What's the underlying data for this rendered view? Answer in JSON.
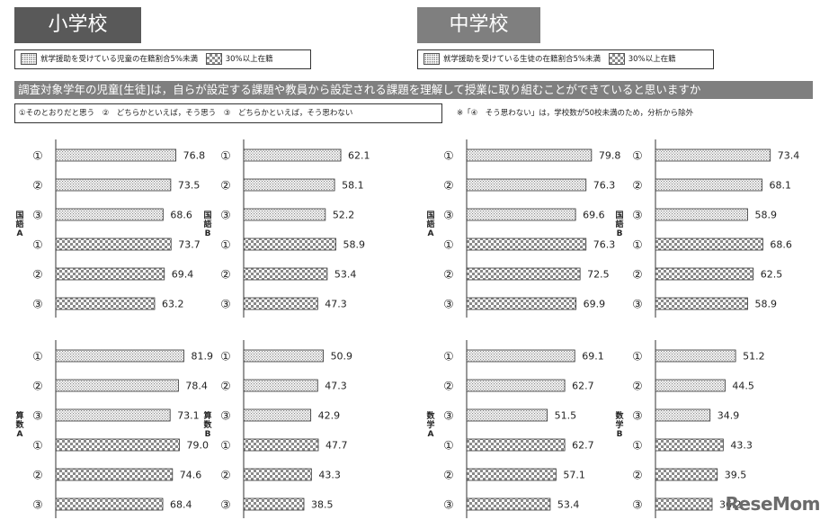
{
  "header": {
    "elementary": {
      "title": "小学校",
      "legend_low": "就学援助を受けている児童の在籍割合5%未満",
      "legend_high": "30%以上在籍"
    },
    "junior": {
      "title": "中学校",
      "legend_low": "就学援助を受けている生徒の在籍割合5%未満",
      "legend_high": "30%以上在籍"
    },
    "question": "調査対象学年の児童[生徒]は，自らが設定する課題や教員から設定される課題を理解して授業に取り組むことができていると思いますか",
    "options": "①そのとおりだと思う　②　どちらかといえば，そう思う　③　どちらかといえば，そう思わない",
    "note": "※「④　そう思わない」は，学校数が50校未満のため，分析から除外"
  },
  "colors": {
    "title_bg": "#595959",
    "question_bg": "#7f7f7f",
    "pattern": "#8a8a8a",
    "axis": "#333333"
  },
  "logo": "ReseMom",
  "chart_data": [
    {
      "type": "bar",
      "orientation": "horizontal",
      "subject": "国語A",
      "school": "小学校",
      "categories": [
        "①",
        "②",
        "③",
        "①",
        "②",
        "③"
      ],
      "groups": [
        "5%未満",
        "5%未満",
        "5%未満",
        "30%以上",
        "30%以上",
        "30%以上"
      ],
      "values": [
        76.8,
        73.5,
        68.6,
        73.7,
        69.4,
        63.2
      ],
      "xlim": [
        0,
        100
      ]
    },
    {
      "type": "bar",
      "orientation": "horizontal",
      "subject": "国語B",
      "school": "小学校",
      "categories": [
        "①",
        "②",
        "③",
        "①",
        "②",
        "③"
      ],
      "groups": [
        "5%未満",
        "5%未満",
        "5%未満",
        "30%以上",
        "30%以上",
        "30%以上"
      ],
      "values": [
        62.1,
        58.1,
        52.2,
        58.9,
        53.4,
        47.3
      ],
      "xlim": [
        0,
        100
      ]
    },
    {
      "type": "bar",
      "orientation": "horizontal",
      "subject": "算数A",
      "school": "小学校",
      "categories": [
        "①",
        "②",
        "③",
        "①",
        "②",
        "③"
      ],
      "groups": [
        "5%未満",
        "5%未満",
        "5%未満",
        "30%以上",
        "30%以上",
        "30%以上"
      ],
      "values": [
        81.9,
        78.4,
        73.1,
        79.0,
        74.6,
        68.4
      ],
      "xlim": [
        0,
        100
      ]
    },
    {
      "type": "bar",
      "orientation": "horizontal",
      "subject": "算数B",
      "school": "小学校",
      "categories": [
        "①",
        "②",
        "③",
        "①",
        "②",
        "③"
      ],
      "groups": [
        "5%未満",
        "5%未満",
        "5%未満",
        "30%以上",
        "30%以上",
        "30%以上"
      ],
      "values": [
        50.9,
        47.3,
        42.9,
        47.7,
        43.3,
        38.5
      ],
      "xlim": [
        0,
        100
      ]
    },
    {
      "type": "bar",
      "orientation": "horizontal",
      "subject": "国語A",
      "school": "中学校",
      "categories": [
        "①",
        "②",
        "③",
        "①",
        "②",
        "③"
      ],
      "groups": [
        "5%未満",
        "5%未満",
        "5%未満",
        "30%以上",
        "30%以上",
        "30%以上"
      ],
      "values": [
        79.8,
        76.3,
        69.6,
        76.3,
        72.5,
        69.9
      ],
      "xlim": [
        0,
        100
      ]
    },
    {
      "type": "bar",
      "orientation": "horizontal",
      "subject": "国語B",
      "school": "中学校",
      "categories": [
        "①",
        "②",
        "③",
        "①",
        "②",
        "③"
      ],
      "groups": [
        "5%未満",
        "5%未満",
        "5%未満",
        "30%以上",
        "30%以上",
        "30%以上"
      ],
      "values": [
        73.4,
        68.1,
        58.9,
        68.6,
        62.5,
        58.9
      ],
      "xlim": [
        0,
        100
      ]
    },
    {
      "type": "bar",
      "orientation": "horizontal",
      "subject": "数学A",
      "school": "中学校",
      "categories": [
        "①",
        "②",
        "③",
        "①",
        "②",
        "③"
      ],
      "groups": [
        "5%未満",
        "5%未満",
        "5%未満",
        "30%以上",
        "30%以上",
        "30%以上"
      ],
      "values": [
        69.1,
        62.7,
        51.5,
        62.7,
        57.1,
        53.4
      ],
      "xlim": [
        0,
        100
      ]
    },
    {
      "type": "bar",
      "orientation": "horizontal",
      "subject": "数学B",
      "school": "中学校",
      "categories": [
        "①",
        "②",
        "③",
        "①",
        "②",
        "③"
      ],
      "groups": [
        "5%未満",
        "5%未満",
        "5%未満",
        "30%以上",
        "30%以上",
        "30%以上"
      ],
      "values": [
        51.2,
        44.5,
        34.9,
        43.3,
        39.5,
        36.2
      ],
      "xlim": [
        0,
        100
      ]
    }
  ]
}
